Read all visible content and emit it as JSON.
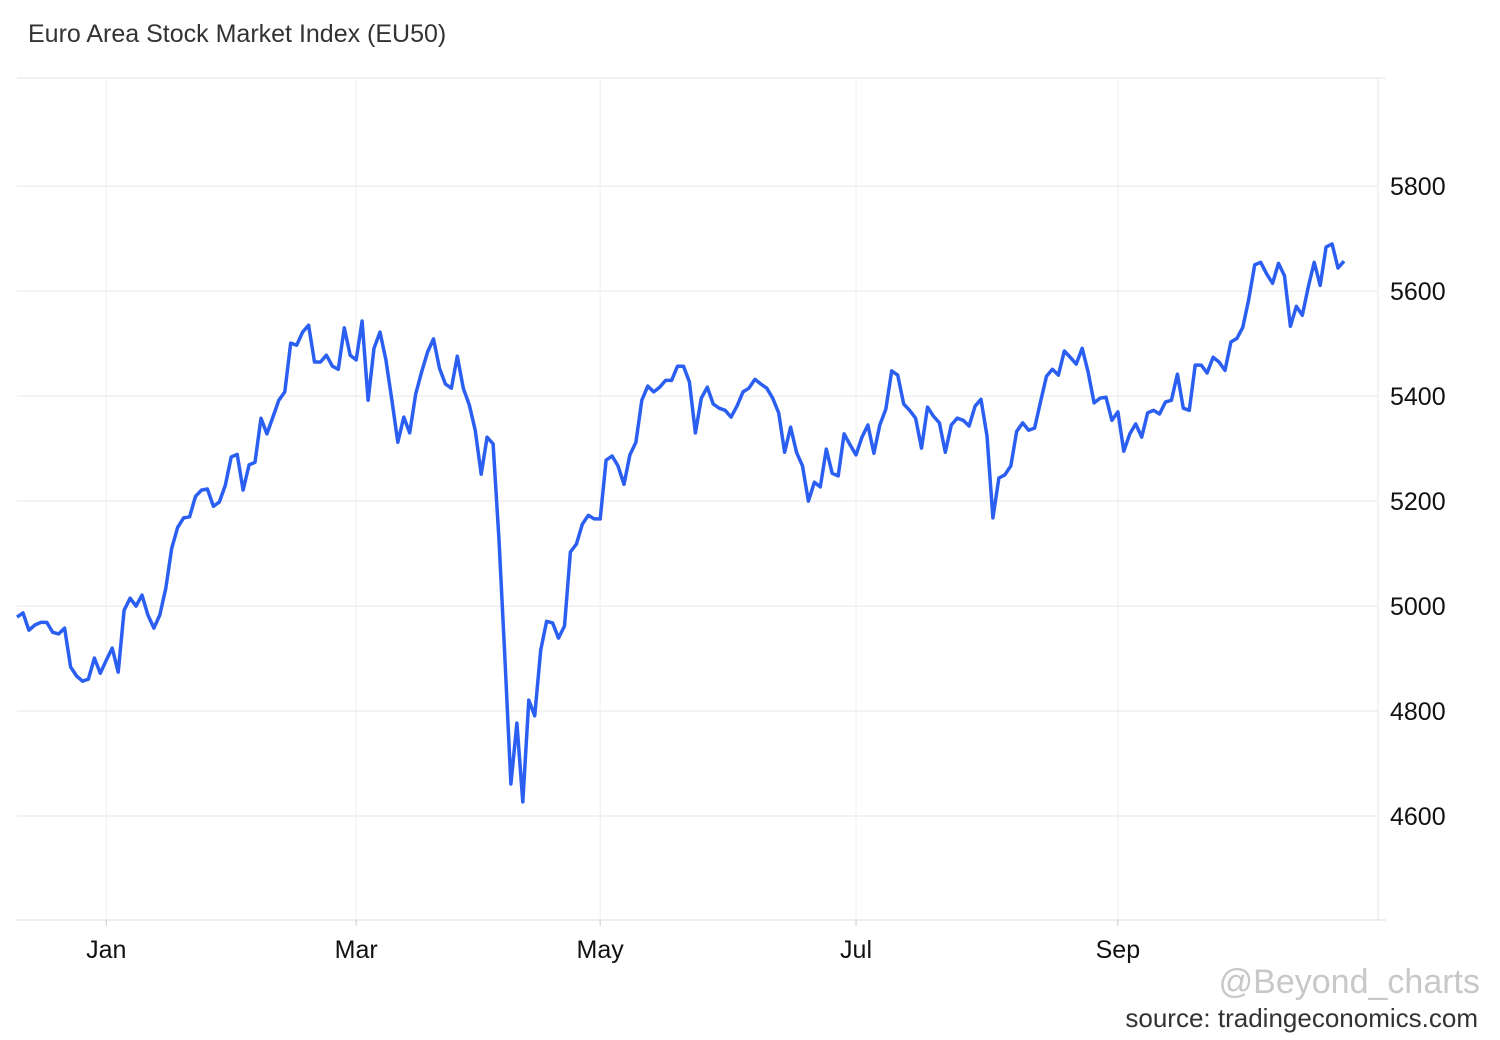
{
  "chart_data": {
    "type": "line",
    "title": "Euro Area Stock Market Index (EU50)",
    "watermark": "@Beyond_charts",
    "source": "source: tradingeconomics.com",
    "categories": [
      null,
      null,
      null,
      null,
      null,
      null,
      null,
      null,
      null,
      null,
      null,
      null,
      null,
      null,
      null,
      "Jan",
      null,
      null,
      null,
      null,
      null,
      null,
      null,
      null,
      null,
      null,
      null,
      null,
      null,
      null,
      null,
      null,
      null,
      null,
      null,
      null,
      null,
      null,
      null,
      null,
      null,
      null,
      null,
      null,
      null,
      null,
      null,
      null,
      null,
      null,
      null,
      null,
      null,
      null,
      null,
      null,
      null,
      "Mar",
      null,
      null,
      null,
      null,
      null,
      null,
      null,
      null,
      null,
      null,
      null,
      null,
      null,
      null,
      null,
      null,
      null,
      null,
      null,
      null,
      null,
      null,
      null,
      null,
      null,
      null,
      null,
      null,
      null,
      null,
      null,
      null,
      null,
      null,
      null,
      null,
      null,
      null,
      null,
      null,
      "May",
      null,
      null,
      null,
      null,
      null,
      null,
      null,
      null,
      null,
      null,
      null,
      null,
      null,
      null,
      null,
      null,
      null,
      null,
      null,
      null,
      null,
      null,
      null,
      null,
      null,
      null,
      null,
      null,
      null,
      null,
      null,
      null,
      null,
      null,
      null,
      null,
      null,
      null,
      null,
      null,
      null,
      null,
      "Jul",
      null,
      null,
      null,
      null,
      null,
      null,
      null,
      null,
      null,
      null,
      null,
      null,
      null,
      null,
      null,
      null,
      null,
      null,
      null,
      null,
      null,
      null,
      null,
      null,
      null,
      null,
      null,
      null,
      null,
      null,
      null,
      null,
      null,
      null,
      null,
      null,
      null,
      null,
      null,
      null,
      null,
      null,
      null,
      "Sep",
      null,
      null,
      null,
      null,
      null,
      null,
      null,
      null,
      null,
      null,
      null,
      null,
      null,
      null,
      null,
      null,
      null,
      null,
      null,
      null,
      null,
      null,
      null,
      null,
      null,
      null,
      null,
      null,
      null,
      null,
      null,
      null,
      null,
      null,
      null,
      null,
      null,
      null
    ],
    "values": [
      4979,
      4987,
      4954,
      4964,
      4969,
      4969,
      4950,
      4947,
      4958,
      4884,
      4867,
      4857,
      4861,
      4901,
      4872,
      4897,
      4920,
      4874,
      4992,
      5015,
      5000,
      5021,
      4983,
      4958,
      4983,
      5034,
      5110,
      5150,
      5168,
      5170,
      5209,
      5221,
      5223,
      5190,
      5198,
      5230,
      5284,
      5289,
      5221,
      5269,
      5274,
      5358,
      5328,
      5360,
      5392,
      5408,
      5501,
      5497,
      5522,
      5535,
      5465,
      5465,
      5478,
      5457,
      5451,
      5530,
      5478,
      5469,
      5543,
      5392,
      5491,
      5522,
      5469,
      5392,
      5312,
      5360,
      5330,
      5404,
      5446,
      5484,
      5509,
      5453,
      5423,
      5415,
      5476,
      5415,
      5383,
      5335,
      5251,
      5322,
      5309,
      5126,
      4897,
      4661,
      4777,
      4627,
      4821,
      4791,
      4916,
      4971,
      4968,
      4939,
      4962,
      5103,
      5118,
      5156,
      5173,
      5166,
      5166,
      5278,
      5286,
      5267,
      5232,
      5288,
      5312,
      5392,
      5419,
      5408,
      5417,
      5430,
      5430,
      5457,
      5457,
      5427,
      5330,
      5396,
      5417,
      5385,
      5377,
      5373,
      5360,
      5381,
      5408,
      5415,
      5432,
      5423,
      5415,
      5396,
      5368,
      5293,
      5341,
      5293,
      5267,
      5200,
      5236,
      5227,
      5299,
      5253,
      5248,
      5328,
      5307,
      5288,
      5322,
      5345,
      5291,
      5345,
      5375,
      5448,
      5440,
      5385,
      5373,
      5358,
      5301,
      5379,
      5362,
      5349,
      5293,
      5345,
      5358,
      5354,
      5343,
      5381,
      5394,
      5324,
      5168,
      5244,
      5250,
      5267,
      5333,
      5349,
      5335,
      5339,
      5389,
      5438,
      5451,
      5440,
      5486,
      5474,
      5461,
      5491,
      5446,
      5387,
      5396,
      5398,
      5354,
      5370,
      5295,
      5328,
      5347,
      5322,
      5368,
      5373,
      5366,
      5389,
      5392,
      5442,
      5377,
      5373,
      5459,
      5459,
      5444,
      5474,
      5465,
      5449,
      5503,
      5510,
      5531,
      5585,
      5650,
      5655,
      5633,
      5615,
      5653,
      5629,
      5533,
      5571,
      5554,
      5608,
      5655,
      5611,
      5684,
      5690,
      5644,
      5657
    ],
    "color": "#2b5ff2",
    "ylim": [
      4402,
      6006
    ],
    "yticks": [
      4600,
      4800,
      5000,
      5200,
      5400,
      5600,
      5800
    ],
    "grid": true
  }
}
